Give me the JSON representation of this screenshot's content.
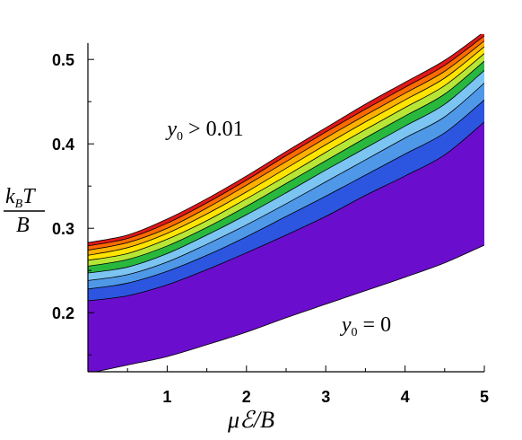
{
  "chart_data": {
    "type": "area",
    "title": "",
    "xlabel": "μℰ/B",
    "ylabel": {
      "numerator_main": "k",
      "numerator_sub": "B",
      "numerator_tail": "T",
      "denominator": "B"
    },
    "xlim": [
      0,
      5
    ],
    "ylim": [
      0.13,
      0.53
    ],
    "x_ticks": [
      {
        "value": 1,
        "label": "1"
      },
      {
        "value": 2,
        "label": "2"
      },
      {
        "value": 3,
        "label": "3"
      },
      {
        "value": 4,
        "label": "4"
      },
      {
        "value": 5,
        "label": "5"
      }
    ],
    "y_ticks": [
      {
        "value": 0.2,
        "label": "0.2"
      },
      {
        "value": 0.3,
        "label": "0.3"
      },
      {
        "value": 0.4,
        "label": "0.4"
      },
      {
        "value": 0.5,
        "label": "0.5"
      }
    ],
    "grid": false,
    "x": [
      0,
      0.5,
      1,
      1.5,
      2,
      2.5,
      3,
      3.5,
      4,
      4.5,
      5
    ],
    "lower_boundary": {
      "label": "y₀ = 0",
      "values": [
        0.128,
        0.138,
        0.148,
        0.162,
        0.177,
        0.194,
        0.21,
        0.226,
        0.242,
        0.259,
        0.28
      ]
    },
    "bands": [
      {
        "color": "#6a0dcc",
        "upper": [
          0.214,
          0.22,
          0.233,
          0.251,
          0.271,
          0.292,
          0.314,
          0.339,
          0.362,
          0.387,
          0.426
        ]
      },
      {
        "color": "#2c56e0",
        "upper": [
          0.228,
          0.235,
          0.249,
          0.268,
          0.29,
          0.314,
          0.338,
          0.363,
          0.388,
          0.413,
          0.452
        ]
      },
      {
        "color": "#4f98e8",
        "upper": [
          0.238,
          0.245,
          0.26,
          0.281,
          0.304,
          0.329,
          0.355,
          0.381,
          0.407,
          0.432,
          0.472
        ]
      },
      {
        "color": "#7cc5f2",
        "upper": [
          0.247,
          0.254,
          0.27,
          0.292,
          0.316,
          0.342,
          0.369,
          0.395,
          0.421,
          0.447,
          0.487
        ]
      },
      {
        "color": "#28b83e",
        "upper": [
          0.255,
          0.263,
          0.279,
          0.301,
          0.326,
          0.353,
          0.38,
          0.407,
          0.433,
          0.459,
          0.498
        ]
      },
      {
        "color": "#b8e636",
        "upper": [
          0.262,
          0.27,
          0.287,
          0.309,
          0.335,
          0.362,
          0.39,
          0.417,
          0.443,
          0.469,
          0.507
        ]
      },
      {
        "color": "#ffe500",
        "upper": [
          0.268,
          0.277,
          0.294,
          0.317,
          0.343,
          0.371,
          0.399,
          0.426,
          0.452,
          0.478,
          0.515
        ]
      },
      {
        "color": "#ffb000",
        "upper": [
          0.274,
          0.283,
          0.3,
          0.324,
          0.351,
          0.379,
          0.407,
          0.434,
          0.46,
          0.486,
          0.522
        ]
      },
      {
        "color": "#ff6a00",
        "upper": [
          0.279,
          0.288,
          0.306,
          0.33,
          0.357,
          0.386,
          0.414,
          0.441,
          0.467,
          0.493,
          0.528
        ]
      },
      {
        "color": "#e01818",
        "upper": [
          0.283,
          0.292,
          0.311,
          0.335,
          0.362,
          0.391,
          0.419,
          0.447,
          0.473,
          0.499,
          0.533
        ]
      }
    ],
    "annotations": [
      {
        "name": "upper-region",
        "main": "y",
        "sub": "0",
        "rest": " > 0.01",
        "at": [
          1.0,
          0.41
        ]
      },
      {
        "name": "lower-region",
        "main": "y",
        "sub": "0",
        "rest": " = 0",
        "at": [
          3.2,
          0.178
        ]
      }
    ]
  }
}
